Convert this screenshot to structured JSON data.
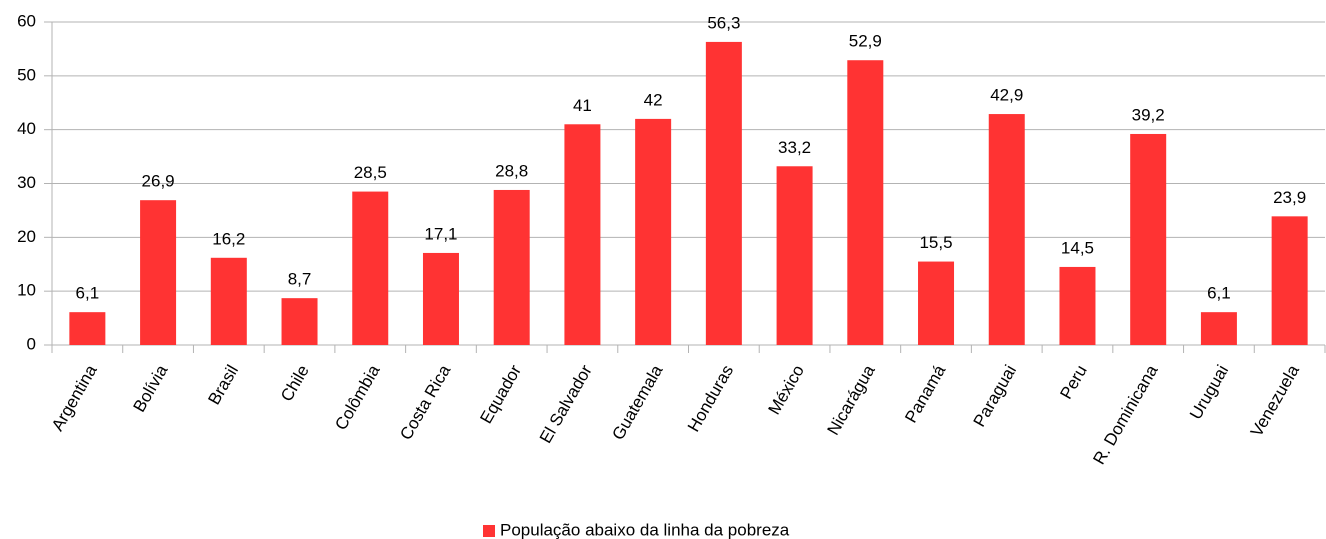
{
  "chart_data": {
    "type": "bar",
    "categories": [
      "Argentina",
      "Bolívia",
      "Brasil",
      "Chile",
      "Colômbia",
      "Costa Rica",
      "Equador",
      "El Salvador",
      "Guatemala",
      "Honduras",
      "México",
      "Nicarágua",
      "Panamá",
      "Paraguai",
      "Peru",
      "R. Dominicana",
      "Uruguai",
      "Venezuela"
    ],
    "series": [
      {
        "name": "População abaixo da linha da pobreza",
        "color": "#ff3333",
        "values": [
          6.1,
          26.9,
          16.2,
          8.7,
          28.5,
          17.1,
          28.8,
          41,
          42,
          56.3,
          33.2,
          52.9,
          15.5,
          42.9,
          14.5,
          39.2,
          6.1,
          23.9
        ],
        "value_labels": [
          "6,1",
          "26,9",
          "16,2",
          "8,7",
          "28,5",
          "17,1",
          "28,8",
          "41",
          "42",
          "56,3",
          "33,2",
          "52,9",
          "15,5",
          "42,9",
          "14,5",
          "39,2",
          "6,1",
          "23,9"
        ]
      }
    ],
    "ylim": [
      0,
      60
    ],
    "yticks": [
      0,
      10,
      20,
      30,
      40,
      50,
      60
    ],
    "grid": true,
    "legend": "bottom"
  }
}
